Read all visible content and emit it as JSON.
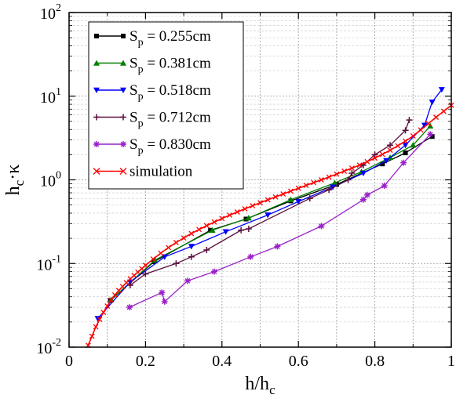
{
  "chart_data": {
    "type": "line",
    "title": "",
    "xlabel": {
      "base": "h/h",
      "sub": "c"
    },
    "ylabel": {
      "pre": "h",
      "sub": "c",
      "post": "·κ"
    },
    "xlim": [
      0,
      1
    ],
    "ylim": [
      0.01,
      100
    ],
    "yscale": "log",
    "grid": true,
    "legend_position": "top-left",
    "x_ticks": [
      "0",
      "0.2",
      "0.4",
      "0.6",
      "0.8",
      "1"
    ],
    "y_ticks": [
      {
        "base": "10",
        "exp": "-2"
      },
      {
        "base": "10",
        "exp": "-1"
      },
      {
        "base": "10",
        "exp": "0"
      },
      {
        "base": "10",
        "exp": "1"
      },
      {
        "base": "10",
        "exp": "2"
      }
    ],
    "series": [
      {
        "name": {
          "pre": "S",
          "sub": "p",
          "post": " = 0.255cm"
        },
        "color": "#000000",
        "marker": "square",
        "x": [
          0.108,
          0.222,
          0.37,
          0.463,
          0.58,
          0.7,
          0.82,
          0.88,
          0.95
        ],
        "y": [
          0.036,
          0.105,
          0.25,
          0.34,
          0.56,
          0.88,
          1.55,
          2.1,
          3.3
        ]
      },
      {
        "name": {
          "pre": "S",
          "sub": "p",
          "post": " = 0.381cm"
        },
        "color": "#008000",
        "marker": "triangle-up",
        "x": [
          0.11,
          0.225,
          0.375,
          0.47,
          0.58,
          0.695,
          0.765,
          0.84,
          0.9,
          0.945
        ],
        "y": [
          0.037,
          0.11,
          0.25,
          0.35,
          0.58,
          0.92,
          1.25,
          1.85,
          2.6,
          4.4
        ]
      },
      {
        "name": {
          "pre": "S",
          "sub": "p",
          "post": " = 0.518cm"
        },
        "color": "#0000ff",
        "marker": "triangle-down",
        "x": [
          0.075,
          0.16,
          0.25,
          0.32,
          0.41,
          0.52,
          0.6,
          0.69,
          0.77,
          0.83,
          0.88,
          0.93,
          0.95,
          0.975
        ],
        "y": [
          0.022,
          0.06,
          0.12,
          0.16,
          0.24,
          0.38,
          0.55,
          0.82,
          1.2,
          1.7,
          2.6,
          4.5,
          8.5,
          12.0
        ]
      },
      {
        "name": {
          "pre": "S",
          "sub": "p",
          "post": " = 0.712cm"
        },
        "color": "#5a0f3c",
        "marker": "plus",
        "x": [
          0.16,
          0.2,
          0.28,
          0.32,
          0.36,
          0.45,
          0.47,
          0.63,
          0.68,
          0.73,
          0.74,
          0.77,
          0.8,
          0.84,
          0.88,
          0.89
        ],
        "y": [
          0.055,
          0.075,
          0.1,
          0.12,
          0.145,
          0.25,
          0.26,
          0.6,
          0.76,
          1.0,
          1.2,
          1.5,
          2.0,
          2.6,
          3.9,
          5.2
        ]
      },
      {
        "name": {
          "pre": "S",
          "sub": "p",
          "post": " = 0.830cm"
        },
        "color": "#9a20c8",
        "marker": "star",
        "x": [
          0.158,
          0.243,
          0.25,
          0.31,
          0.38,
          0.475,
          0.545,
          0.66,
          0.77,
          0.78,
          0.825,
          0.875,
          0.945
        ],
        "y": [
          0.03,
          0.045,
          0.035,
          0.062,
          0.08,
          0.12,
          0.16,
          0.28,
          0.58,
          0.66,
          0.85,
          1.6,
          3.5
        ]
      },
      {
        "name": {
          "pre": "simulation",
          "sub": "",
          "post": ""
        },
        "color": "#ff0000",
        "marker": "x",
        "x": [
          0.05,
          0.06,
          0.07,
          0.08,
          0.09,
          0.1,
          0.11,
          0.12,
          0.13,
          0.14,
          0.15,
          0.16,
          0.17,
          0.18,
          0.19,
          0.2,
          0.22,
          0.24,
          0.26,
          0.28,
          0.3,
          0.32,
          0.34,
          0.36,
          0.38,
          0.4,
          0.42,
          0.44,
          0.46,
          0.48,
          0.5,
          0.52,
          0.54,
          0.56,
          0.58,
          0.6,
          0.62,
          0.64,
          0.66,
          0.68,
          0.7,
          0.72,
          0.74,
          0.76,
          0.78,
          0.8,
          0.82,
          0.84,
          0.86,
          0.88,
          0.9,
          0.92,
          0.94,
          0.96,
          0.98,
          1.0
        ],
        "y": [
          0.0105,
          0.0135,
          0.0175,
          0.0215,
          0.026,
          0.031,
          0.0365,
          0.042,
          0.0475,
          0.053,
          0.059,
          0.0655,
          0.072,
          0.079,
          0.0865,
          0.095,
          0.113,
          0.133,
          0.155,
          0.178,
          0.202,
          0.228,
          0.255,
          0.283,
          0.313,
          0.345,
          0.378,
          0.413,
          0.45,
          0.49,
          0.532,
          0.577,
          0.625,
          0.677,
          0.733,
          0.793,
          0.858,
          0.928,
          1.0,
          1.08,
          1.17,
          1.27,
          1.38,
          1.5,
          1.65,
          1.82,
          2.02,
          2.26,
          2.55,
          2.9,
          3.35,
          3.95,
          4.7,
          5.6,
          6.6,
          7.8
        ]
      }
    ]
  }
}
